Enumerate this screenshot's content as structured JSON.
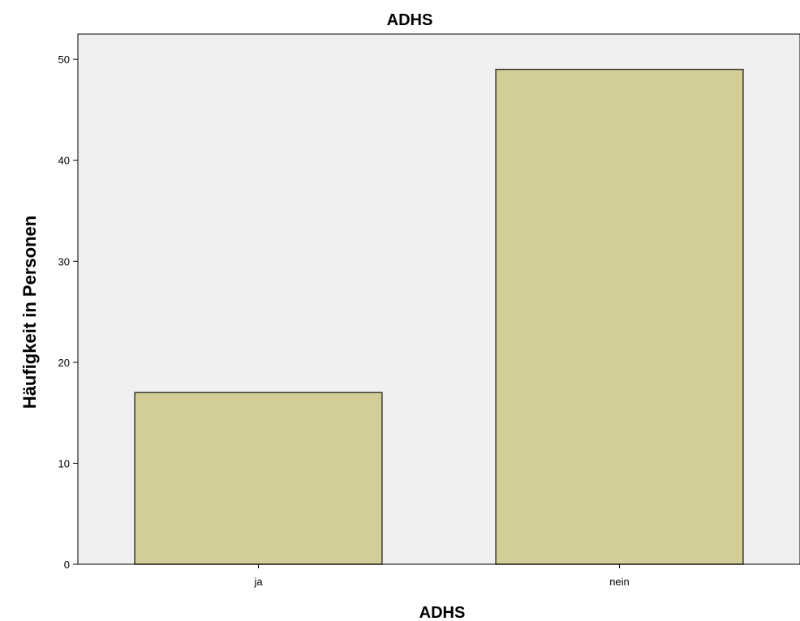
{
  "chart_data": {
    "type": "bar",
    "title": "ADHS",
    "xlabel": "ADHS",
    "ylabel": "Häufigkeit in Personen",
    "categories": [
      "ja",
      "nein"
    ],
    "values": [
      17,
      49
    ],
    "ylim": [
      0,
      52.5
    ],
    "yticks": [
      0,
      10,
      20,
      30,
      40,
      50
    ],
    "grid": false,
    "legend": "none",
    "colors": {
      "bar_fill": "#d3cd98",
      "bar_stroke": "#3a3a30",
      "plot_bg": "#f0f0f0",
      "axis": "#000000"
    }
  }
}
